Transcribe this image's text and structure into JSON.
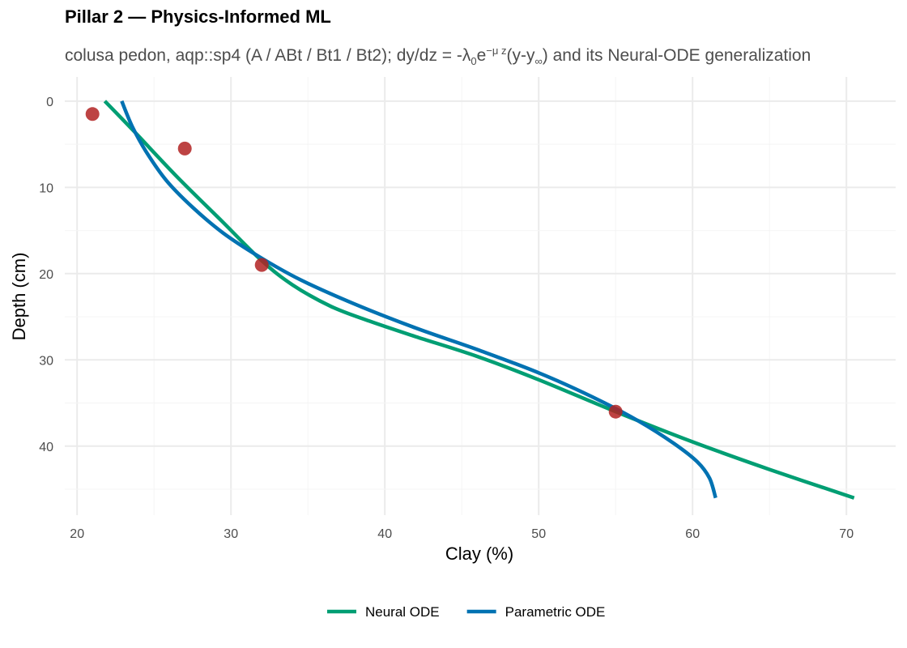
{
  "title": "Pillar 2 — Physics-Informed ML",
  "subtitle": {
    "part1": "colusa pedon, aqp::sp4 (A / ABt / Bt1 / Bt2); dy/dz = -λ",
    "sub0": "0",
    "part2": "e",
    "sup": "−μ z",
    "part3": "(y-y",
    "subinf": "∞",
    "part4": ") and its Neural-ODE generalization"
  },
  "chart_data": {
    "type": "line",
    "title": "Pillar 2 — Physics-Informed ML",
    "xlabel": "Clay (%)",
    "ylabel": "Depth (cm)",
    "xlim": [
      19.2,
      73.2
    ],
    "ylim": [
      -2.8,
      48
    ],
    "y_reversed": true,
    "x_ticks": [
      20,
      30,
      40,
      50,
      60,
      70
    ],
    "y_ticks": [
      0,
      10,
      20,
      30,
      40
    ],
    "grid": true,
    "legend_position": "bottom",
    "series": [
      {
        "name": "Neural ODE",
        "color": "#009E73",
        "x": [
          21.8,
          23.7,
          26.4,
          29.4,
          32.0,
          34.0,
          36.5,
          39.0,
          42.0,
          46.0,
          50.0,
          55.0,
          60.0,
          65.0,
          70.5
        ],
        "y": [
          0,
          3.5,
          8.6,
          13.9,
          18.5,
          21.3,
          23.8,
          25.5,
          27.3,
          29.6,
          32.3,
          36.0,
          39.5,
          42.7,
          46.0
        ]
      },
      {
        "name": "Parametric ODE",
        "color": "#0072B2",
        "x": [
          22.9,
          23.6,
          24.5,
          25.8,
          27.5,
          29.5,
          31.8,
          34.5,
          38.0,
          42.0,
          46.0,
          50.0,
          53.5,
          56.5,
          58.8,
          60.3,
          61.1,
          61.5
        ],
        "y": [
          0,
          3.0,
          5.9,
          9.2,
          12.3,
          15.3,
          18.0,
          20.7,
          23.5,
          26.3,
          28.8,
          31.5,
          34.3,
          37.1,
          39.7,
          41.8,
          43.7,
          46.0
        ]
      }
    ],
    "observations": {
      "color": "#B22222",
      "x": [
        21,
        27,
        32,
        55
      ],
      "y": [
        1.5,
        5.5,
        19,
        36
      ]
    }
  }
}
